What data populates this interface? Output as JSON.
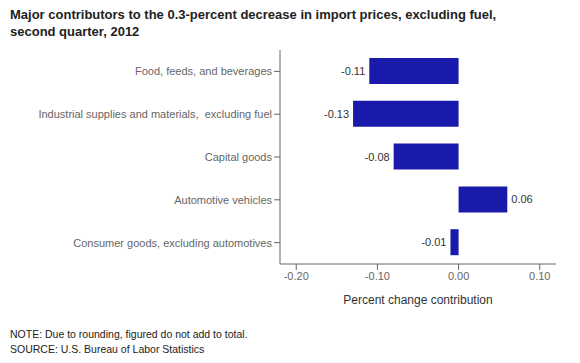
{
  "chart_data": {
    "type": "bar",
    "orientation": "horizontal",
    "title": "Major contributors to the 0.3-percent decrease in import prices, excluding fuel,\nsecond quarter, 2012",
    "categories": [
      "Food, feeds, and beverages",
      "Industrial supplies and materials,  excluding fuel",
      "Capital goods",
      "Automotive vehicles",
      "Consumer goods, excluding automotives"
    ],
    "values": [
      -0.11,
      -0.13,
      -0.08,
      0.06,
      -0.01
    ],
    "color": "#1a1aaa",
    "xlim": [
      -0.22,
      0.12
    ],
    "xticks": [
      {
        "value": -0.2,
        "label": "-0.20"
      },
      {
        "value": -0.1,
        "label": "-0.10"
      },
      {
        "value": 0,
        "label": "0.00"
      },
      {
        "value": 0.1,
        "label": "0.10"
      }
    ],
    "xlabel": "Percent change contribution",
    "annotations": [
      "NOTE: Due to rounding, figured do not add to total.",
      "SOURCE: U.S. Bureau of Labor Statistics"
    ],
    "data_labels": true,
    "grid": false
  }
}
